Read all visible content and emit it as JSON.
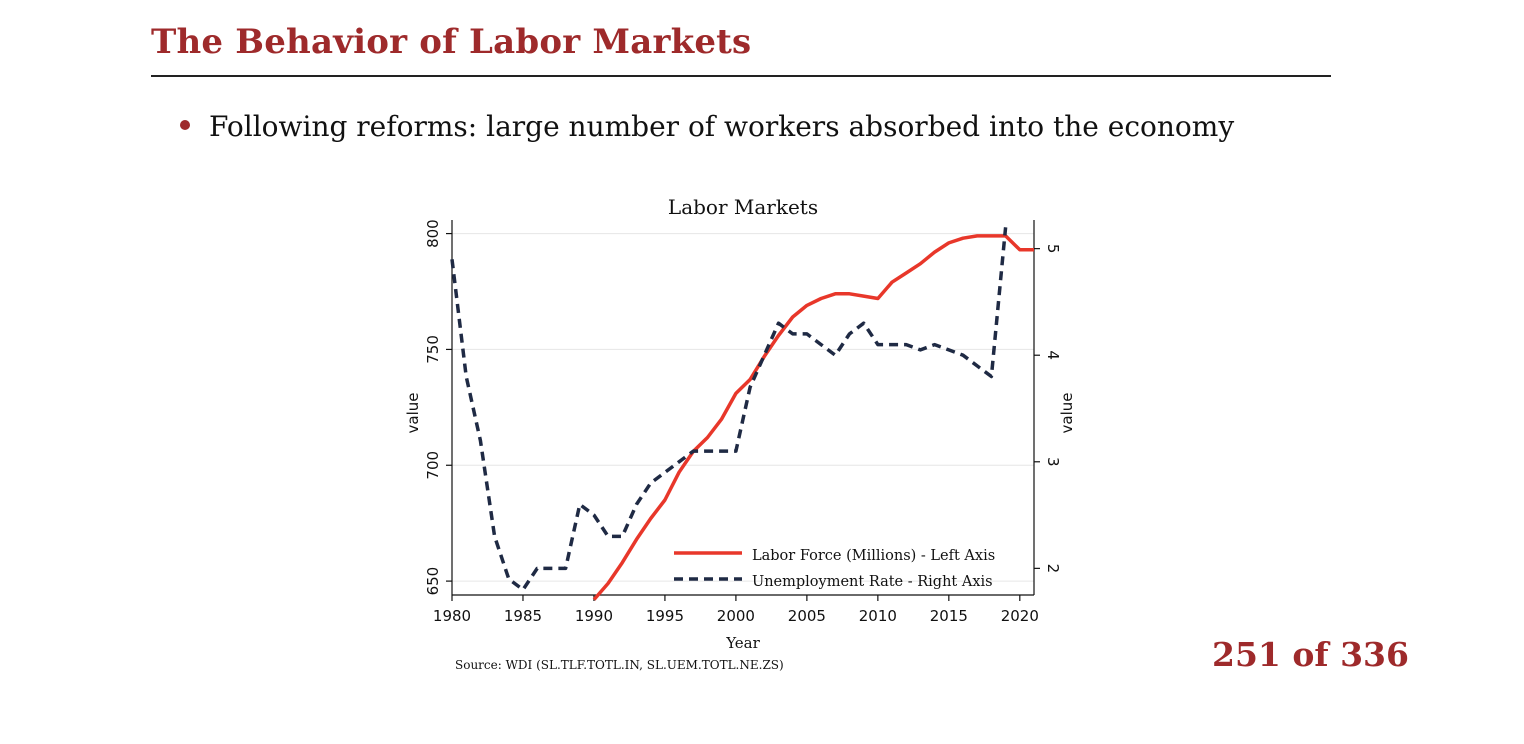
{
  "slide": {
    "title": "The Behavior of Labor Markets",
    "bullet": "Following reforms: large number of workers absorbed into the economy",
    "page_number": "251 of 336",
    "accent_color": "#9e2a2b"
  },
  "chart_data": {
    "type": "line",
    "title": "Labor Markets",
    "xlabel": "Year",
    "ylabel_left": "value",
    "ylabel_right": "value",
    "source": "Source: WDI (SL.TLF.TOTL.IN, SL.UEM.TOTL.NE.ZS)",
    "xlim": [
      1980,
      2021
    ],
    "x_ticks": [
      1980,
      1985,
      1990,
      1995,
      2000,
      2005,
      2010,
      2015,
      2020
    ],
    "ylim_left": [
      644,
      805
    ],
    "y_ticks_left": [
      650,
      700,
      750,
      800
    ],
    "ylim_right": [
      1.75,
      5.25
    ],
    "y_ticks_right": [
      2,
      3,
      4,
      5
    ],
    "grid": true,
    "legend_position": "bottom-right",
    "series": [
      {
        "name": "Labor Force (Millions) - Left Axis",
        "axis": "left",
        "color": "#e8372a",
        "style": "solid",
        "x": [
          1990,
          1991,
          1992,
          1993,
          1994,
          1995,
          1996,
          1997,
          1998,
          1999,
          2000,
          2001,
          2002,
          2003,
          2004,
          2005,
          2006,
          2007,
          2008,
          2009,
          2010,
          2011,
          2012,
          2013,
          2014,
          2015,
          2016,
          2017,
          2018,
          2019,
          2020,
          2021
        ],
        "values": [
          642,
          649,
          658,
          668,
          677,
          685,
          697,
          706,
          712,
          720,
          731,
          737,
          747,
          756,
          764,
          769,
          772,
          774,
          774,
          773,
          772,
          779,
          783,
          787,
          792,
          796,
          798,
          799,
          799,
          799,
          793,
          793
        ]
      },
      {
        "name": "Unemployment Rate - Right Axis",
        "axis": "right",
        "color": "#1f2a44",
        "style": "dashed",
        "x": [
          1980,
          1981,
          1982,
          1983,
          1984,
          1985,
          1986,
          1987,
          1988,
          1989,
          1990,
          1991,
          1992,
          1993,
          1994,
          1995,
          1996,
          1997,
          1998,
          1999,
          2000,
          2001,
          2002,
          2003,
          2004,
          2005,
          2006,
          2007,
          2008,
          2009,
          2010,
          2011,
          2012,
          2013,
          2014,
          2015,
          2016,
          2017,
          2018,
          2019
        ],
        "values": [
          4.9,
          3.8,
          3.2,
          2.3,
          1.9,
          1.8,
          2.0,
          2.0,
          2.0,
          2.6,
          2.5,
          2.3,
          2.3,
          2.6,
          2.8,
          2.9,
          3.0,
          3.1,
          3.1,
          3.1,
          3.1,
          3.7,
          4.0,
          4.3,
          4.2,
          4.2,
          4.1,
          4.0,
          4.2,
          4.3,
          4.1,
          4.1,
          4.1,
          4.05,
          4.1,
          4.05,
          4.0,
          3.9,
          3.8,
          5.2
        ]
      }
    ]
  }
}
